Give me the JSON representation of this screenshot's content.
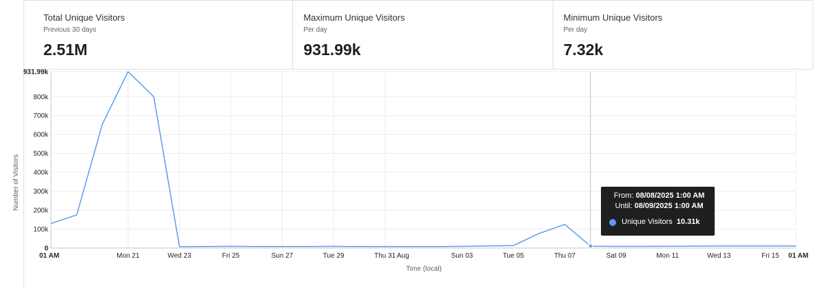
{
  "kpis": [
    {
      "title": "Total Unique Visitors",
      "subtitle": "Previous 30 days",
      "value": "2.51M"
    },
    {
      "title": "Maximum Unique Visitors",
      "subtitle": "Per day",
      "value": "931.99k"
    },
    {
      "title": "Minimum Unique Visitors",
      "subtitle": "Per day",
      "value": "7.32k"
    }
  ],
  "colors": {
    "series": "#5b9bf0",
    "grid": "#ececec",
    "axis": "#252423",
    "tooltip_bg": "#1f1f1f"
  },
  "tooltip": {
    "from_label": "From:",
    "from_value": "08/08/2025 1:00 AM",
    "until_label": "Until:",
    "until_value": "08/09/2025 1:00 AM",
    "series_name": "Unique Visitors",
    "series_value": "10.31k",
    "index": 21
  },
  "chart_data": {
    "type": "line",
    "ylabel": "Number of Visitors",
    "xlabel": "Time (local)",
    "ylim": [
      0,
      931990
    ],
    "y_ticks": [
      {
        "value": 0,
        "label": "0",
        "bold": true
      },
      {
        "value": 100000,
        "label": "100k"
      },
      {
        "value": 200000,
        "label": "200k"
      },
      {
        "value": 300000,
        "label": "300k"
      },
      {
        "value": 400000,
        "label": "400k"
      },
      {
        "value": 500000,
        "label": "500k"
      },
      {
        "value": 600000,
        "label": "600k"
      },
      {
        "value": 700000,
        "label": "700k"
      },
      {
        "value": 800000,
        "label": "800k"
      },
      {
        "value": 931990,
        "label": "931.99k",
        "bold": true
      }
    ],
    "x_ticks": [
      {
        "index": 0,
        "label": "01 AM",
        "bold": true
      },
      {
        "index": 3,
        "label": "Mon 21"
      },
      {
        "index": 5,
        "label": "Wed 23"
      },
      {
        "index": 7,
        "label": "Fri 25"
      },
      {
        "index": 9,
        "label": "Sun 27"
      },
      {
        "index": 11,
        "label": "Tue 29"
      },
      {
        "index": 13,
        "label": "Thu 31"
      },
      {
        "index": 13.7,
        "label": "Aug"
      },
      {
        "index": 16,
        "label": "Sun 03"
      },
      {
        "index": 18,
        "label": "Tue 05"
      },
      {
        "index": 20,
        "label": "Thu 07"
      },
      {
        "index": 22,
        "label": "Sat 09"
      },
      {
        "index": 24,
        "label": "Mon 11"
      },
      {
        "index": 26,
        "label": "Wed 13"
      },
      {
        "index": 28,
        "label": "Fri 15"
      },
      {
        "index": 29,
        "label": "01 AM",
        "bold": true
      }
    ],
    "series": [
      {
        "name": "Unique Visitors",
        "values": [
          130000,
          175000,
          655000,
          931990,
          800000,
          7320,
          8000,
          9000,
          8500,
          8000,
          8000,
          9000,
          8000,
          7500,
          7500,
          7500,
          9000,
          11000,
          13000,
          77000,
          125000,
          10310,
          9000,
          9000,
          9500,
          10000,
          11000,
          11000,
          11000,
          11000
        ]
      }
    ]
  }
}
